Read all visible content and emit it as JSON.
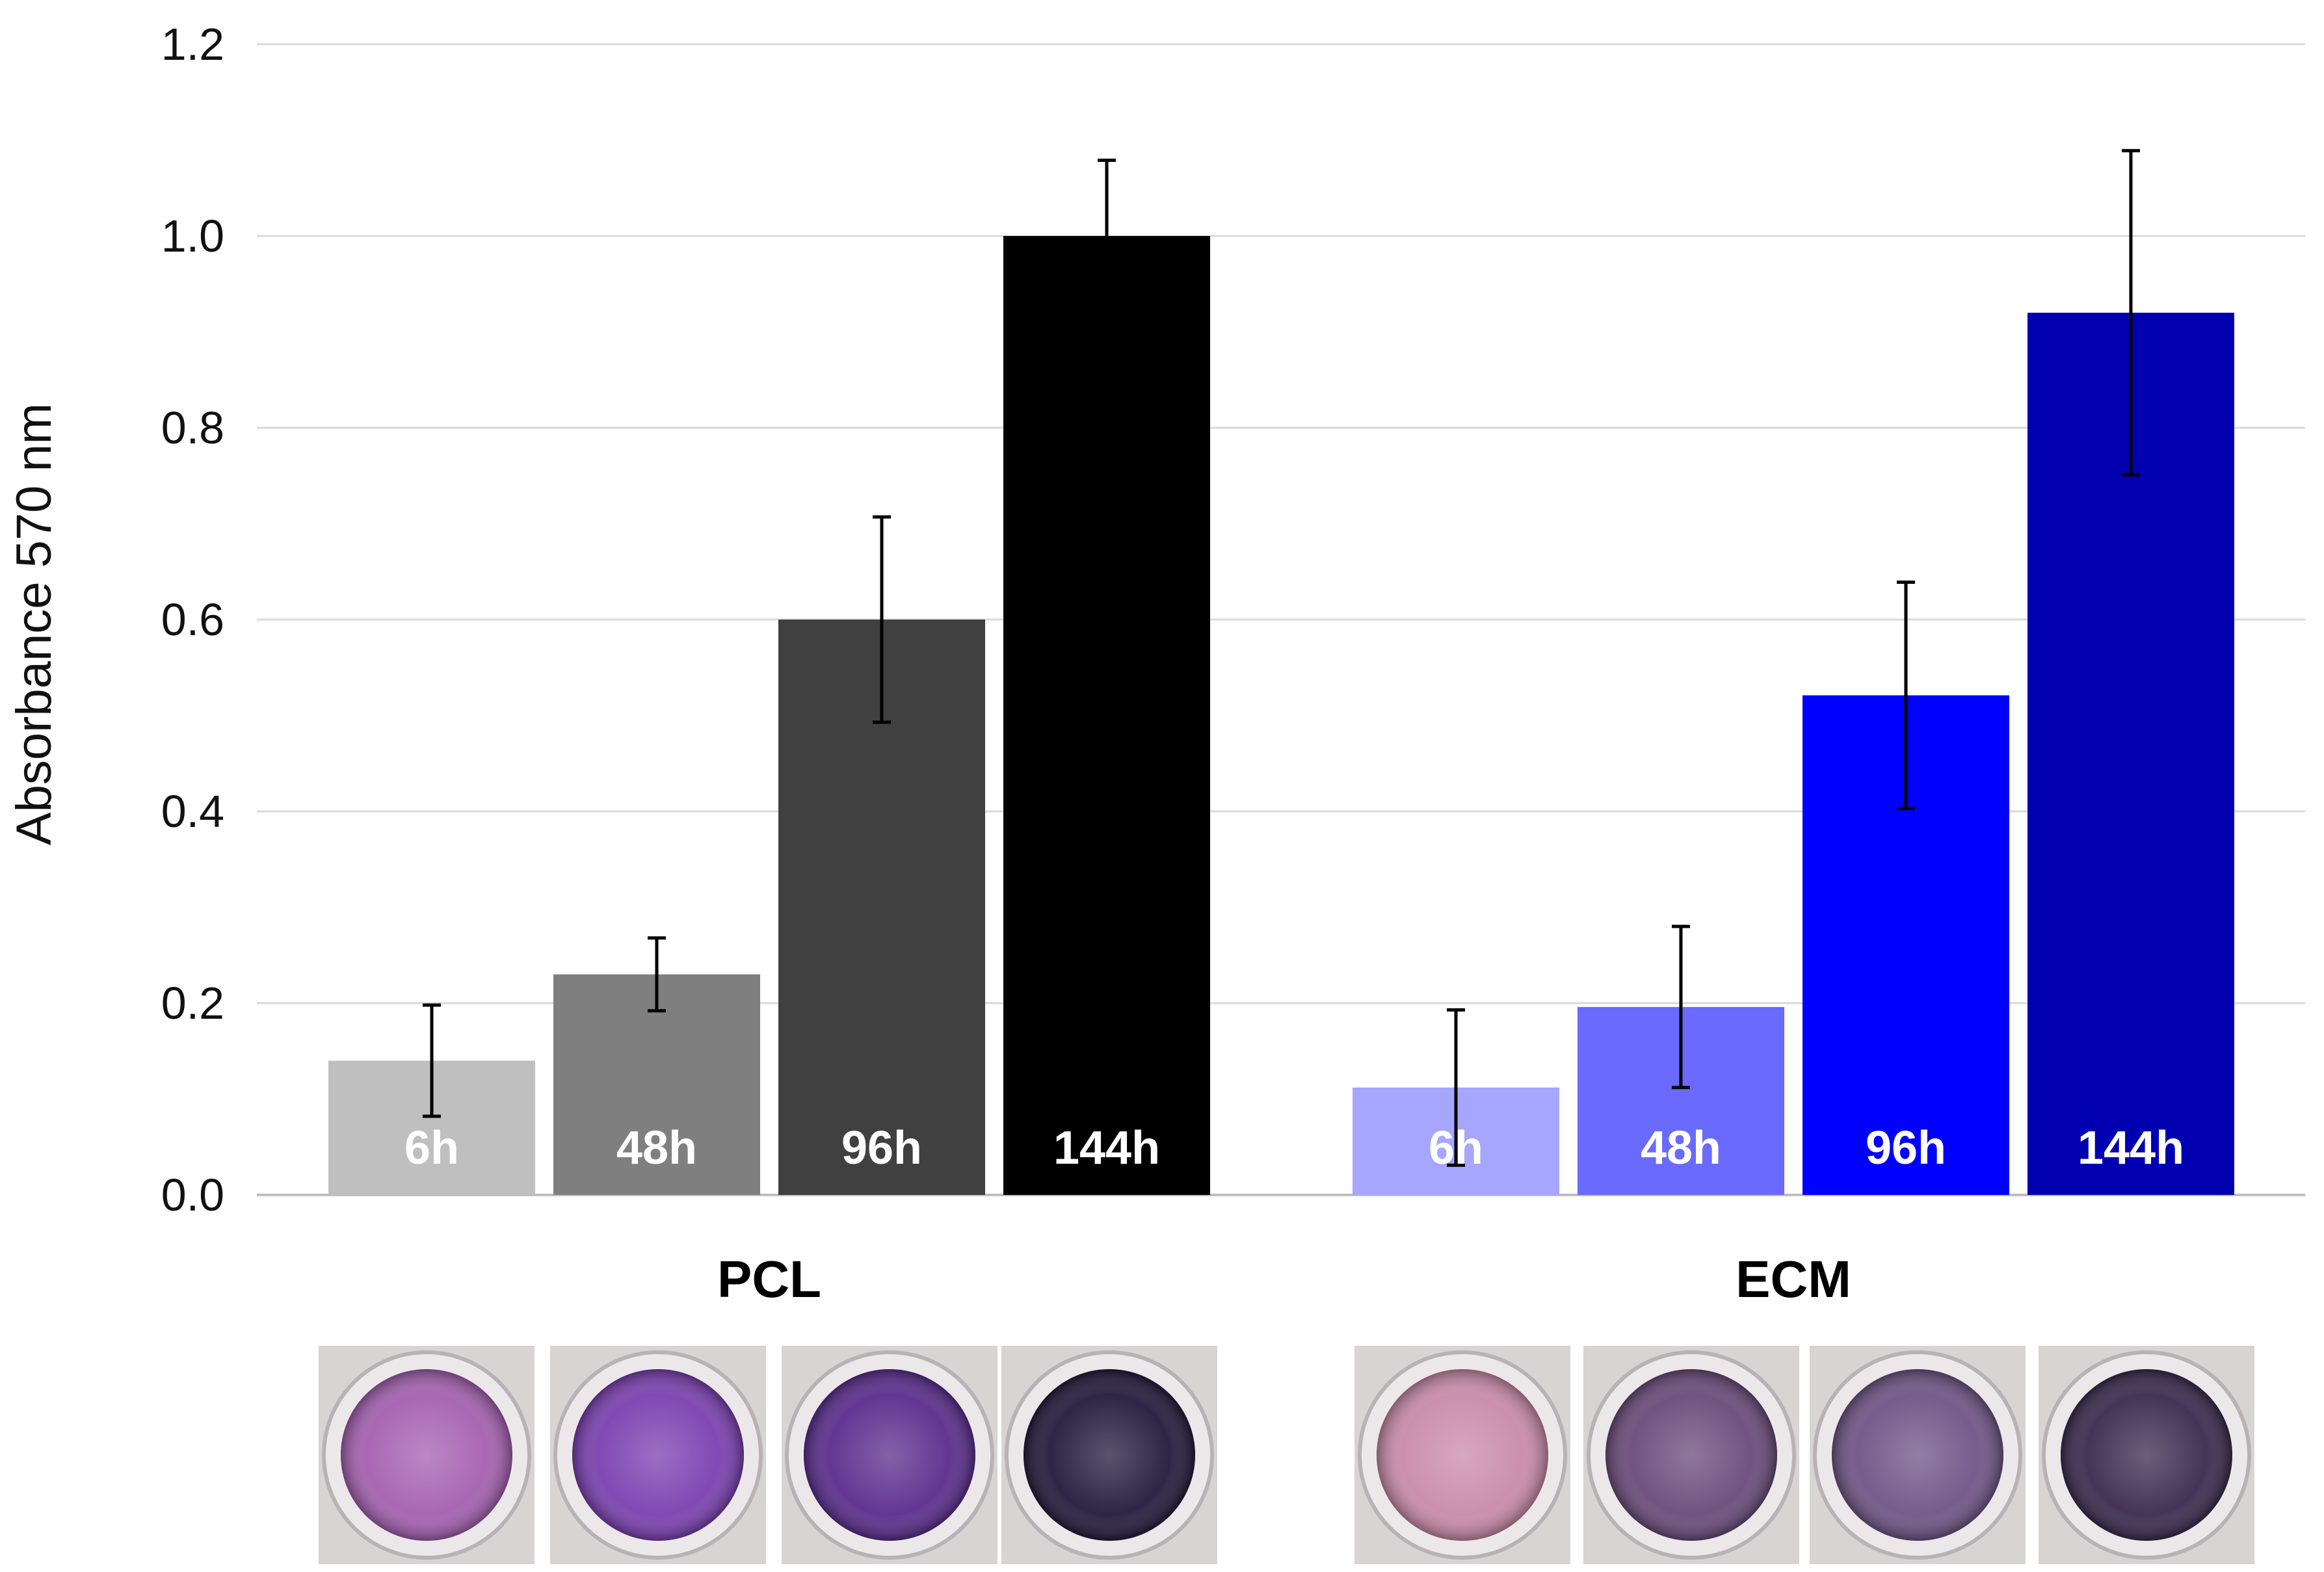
{
  "chart_data": {
    "type": "bar",
    "title": "",
    "xlabel": "",
    "ylabel": "Absorbance 570 nm",
    "ylim": [
      0,
      1.2
    ],
    "yticks": [
      "0.0",
      "0.2",
      "0.4",
      "0.6",
      "0.8",
      "1.0",
      "1.2"
    ],
    "grid": true,
    "groups": [
      {
        "name": "PCL",
        "categories": [
          "6h",
          "48h",
          "96h",
          "144h"
        ],
        "values": [
          0.14,
          0.23,
          0.6,
          1.0
        ],
        "errors": [
          0.058,
          0.038,
          0.107,
          0.079
        ],
        "colors": [
          "#bfbfbf",
          "#7f7f7f",
          "#404040",
          "#000000"
        ]
      },
      {
        "name": "ECM",
        "categories": [
          "6h",
          "48h",
          "96h",
          "144h"
        ],
        "values": [
          0.112,
          0.196,
          0.521,
          0.92
        ],
        "errors": [
          0.081,
          0.084,
          0.118,
          0.169
        ],
        "colors": [
          "#a6a6ff",
          "#6a6aff",
          "#0000ff",
          "#0000b0"
        ]
      }
    ],
    "well_images": [
      {
        "group": "PCL",
        "timepoint": "6h",
        "tone": "#a45fb0"
      },
      {
        "group": "PCL",
        "timepoint": "48h",
        "tone": "#7a3fb0"
      },
      {
        "group": "PCL",
        "timepoint": "96h",
        "tone": "#5a2c8c"
      },
      {
        "group": "PCL",
        "timepoint": "144h",
        "tone": "#231a3c"
      },
      {
        "group": "ECM",
        "timepoint": "6h",
        "tone": "#c98aa8"
      },
      {
        "group": "ECM",
        "timepoint": "48h",
        "tone": "#6a4a7a"
      },
      {
        "group": "ECM",
        "timepoint": "96h",
        "tone": "#6e5486"
      },
      {
        "group": "ECM",
        "timepoint": "144h",
        "tone": "#3a2a4e"
      }
    ]
  }
}
